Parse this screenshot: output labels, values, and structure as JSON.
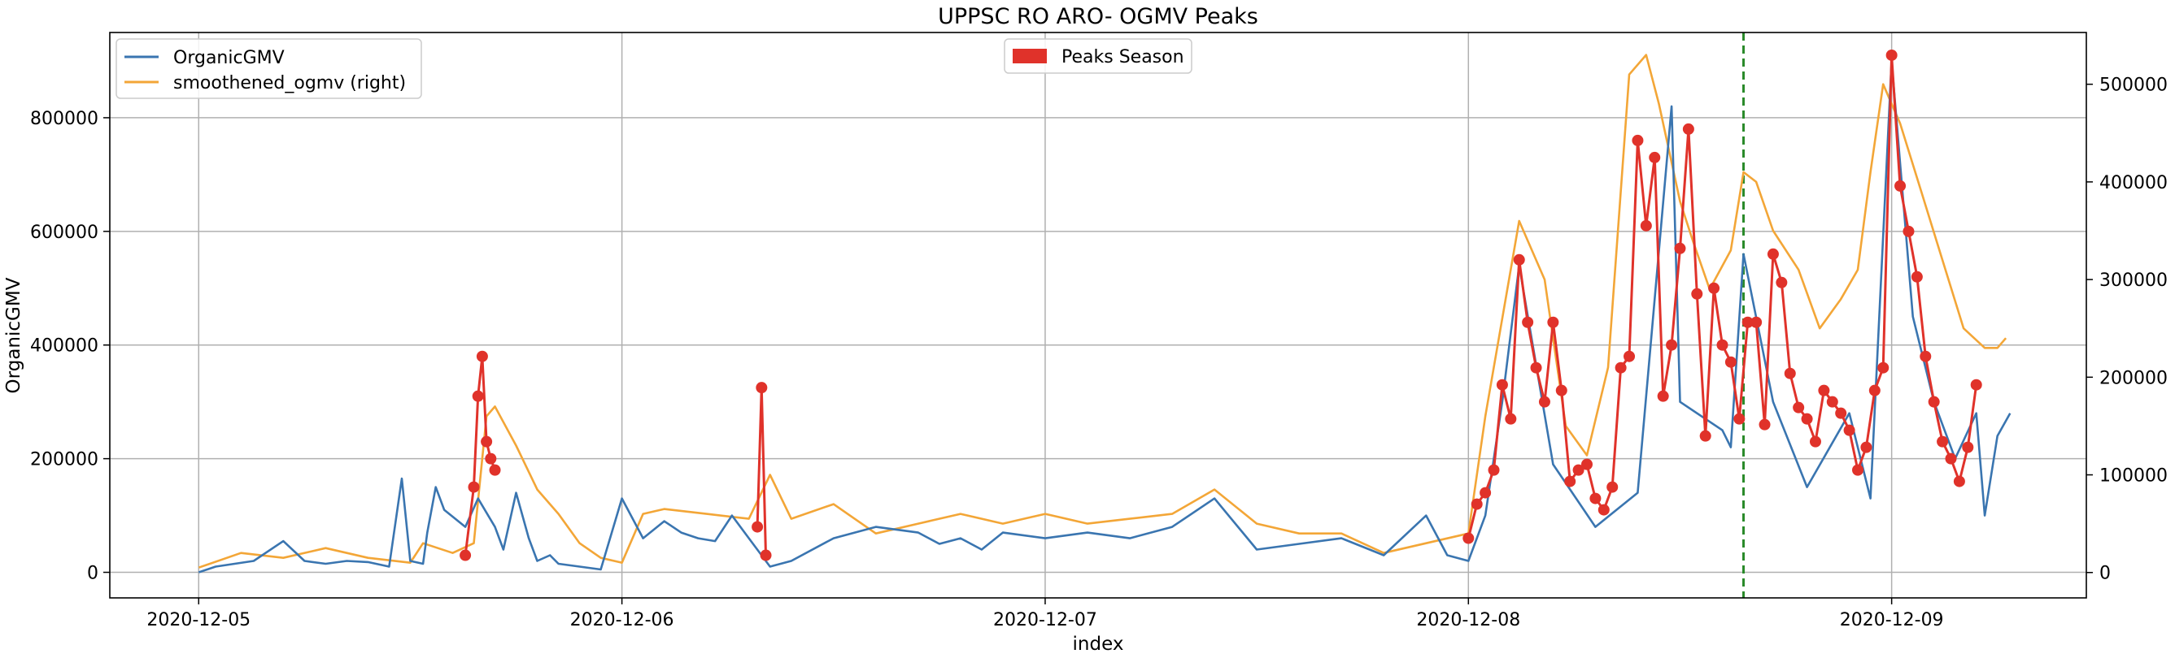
{
  "chart_data": {
    "type": "line",
    "title": "UPPSC RO ARO- OGMV Peaks",
    "xlabel": "index",
    "ylabel": "OrganicGMV",
    "ylabel_right": "",
    "x_ticks": [
      "2020-12-05",
      "2020-12-06",
      "2020-12-07",
      "2020-12-08",
      "2020-12-09"
    ],
    "y_ticks_left": [
      "0",
      "200000",
      "400000",
      "600000",
      "800000"
    ],
    "y_ticks_right": [
      "0",
      "100000",
      "200000",
      "300000",
      "400000",
      "500000"
    ],
    "ylim_left": [
      -45000,
      950000
    ],
    "ylim_right": [
      -26000,
      553000
    ],
    "xlim_days": [
      -0.21,
      4.46
    ],
    "grid": true,
    "legend_left_placement": "top-left",
    "legend_center_placement": "top-center",
    "vline": {
      "x_day": 3.65,
      "color": "#2a8a2a",
      "style": "dashed"
    },
    "colors": {
      "organic": "#3a75b0",
      "smooth": "#f3a637",
      "peaks": "#e0322a",
      "grid": "#b0b0b0"
    },
    "series": [
      {
        "name": "OrganicGMV",
        "axis": "left",
        "x_day": [
          0,
          0.04,
          0.13,
          0.2,
          0.25,
          0.3,
          0.35,
          0.4,
          0.45,
          0.48,
          0.5,
          0.53,
          0.54,
          0.56,
          0.58,
          0.63,
          0.66,
          0.7,
          0.72,
          0.75,
          0.78,
          0.8,
          0.83,
          0.85,
          0.9,
          0.95,
          1.0,
          1.05,
          1.1,
          1.12,
          1.14,
          1.18,
          1.22,
          1.26,
          1.3,
          1.35,
          1.4,
          1.5,
          1.6,
          1.7,
          1.75,
          1.8,
          1.85,
          1.9,
          2.0,
          2.1,
          2.2,
          2.3,
          2.4,
          2.5,
          2.6,
          2.7,
          2.8,
          2.9,
          2.95,
          3.0,
          3.04,
          3.08,
          3.12,
          3.2,
          3.3,
          3.4,
          3.48,
          3.5,
          3.6,
          3.62,
          3.65,
          3.72,
          3.8,
          3.9,
          3.95,
          4.0,
          4.05,
          4.1,
          4.15,
          4.2,
          4.22,
          4.25,
          4.28
        ],
        "values": [
          0,
          10000,
          20000,
          55000,
          20000,
          15000,
          20000,
          18000,
          10000,
          165000,
          20000,
          15000,
          70000,
          150000,
          110000,
          80000,
          130000,
          80000,
          40000,
          140000,
          60000,
          20000,
          30000,
          15000,
          10000,
          5000,
          130000,
          60000,
          90000,
          80000,
          70000,
          60000,
          55000,
          100000,
          60000,
          10000,
          20000,
          60000,
          80000,
          70000,
          50000,
          60000,
          40000,
          70000,
          60000,
          70000,
          60000,
          80000,
          130000,
          40000,
          50000,
          60000,
          30000,
          100000,
          30000,
          20000,
          100000,
          300000,
          540000,
          190000,
          80000,
          140000,
          820000,
          300000,
          250000,
          220000,
          560000,
          300000,
          150000,
          280000,
          130000,
          900000,
          450000,
          300000,
          200000,
          280000,
          100000,
          240000,
          280000
        ]
      },
      {
        "name": "smoothened_ogmv (right)",
        "axis": "right",
        "x_day": [
          0,
          0.1,
          0.2,
          0.3,
          0.4,
          0.5,
          0.53,
          0.6,
          0.65,
          0.68,
          0.7,
          0.75,
          0.8,
          0.85,
          0.9,
          0.95,
          1.0,
          1.05,
          1.1,
          1.2,
          1.3,
          1.35,
          1.4,
          1.5,
          1.6,
          1.7,
          1.8,
          1.9,
          2.0,
          2.1,
          2.2,
          2.3,
          2.4,
          2.5,
          2.6,
          2.7,
          2.8,
          2.9,
          3.0,
          3.04,
          3.08,
          3.12,
          3.18,
          3.23,
          3.28,
          3.33,
          3.38,
          3.42,
          3.45,
          3.5,
          3.53,
          3.57,
          3.62,
          3.65,
          3.68,
          3.72,
          3.78,
          3.83,
          3.88,
          3.92,
          3.95,
          3.98,
          4.02,
          4.07,
          4.12,
          4.17,
          4.22,
          4.25,
          4.27
        ],
        "values": [
          5000,
          20000,
          15000,
          25000,
          15000,
          10000,
          30000,
          20000,
          30000,
          160000,
          170000,
          130000,
          85000,
          60000,
          30000,
          15000,
          10000,
          60000,
          65000,
          60000,
          55000,
          100000,
          55000,
          70000,
          40000,
          50000,
          60000,
          50000,
          60000,
          50000,
          55000,
          60000,
          85000,
          50000,
          40000,
          40000,
          20000,
          30000,
          40000,
          160000,
          260000,
          360000,
          300000,
          150000,
          120000,
          210000,
          510000,
          530000,
          480000,
          380000,
          340000,
          290000,
          330000,
          410000,
          400000,
          350000,
          310000,
          250000,
          280000,
          310000,
          410000,
          500000,
          460000,
          390000,
          320000,
          250000,
          230000,
          230000,
          240000
        ]
      },
      {
        "name": "Peaks Season",
        "axis": "left",
        "marker": true,
        "x_day": [
          0.63,
          0.65,
          0.66,
          0.67,
          0.68,
          0.69,
          0.7,
          1.32,
          1.33,
          1.34,
          3.0,
          3.02,
          3.04,
          3.06,
          3.08,
          3.1,
          3.12,
          3.14,
          3.16,
          3.18,
          3.2,
          3.22,
          3.24,
          3.26,
          3.28,
          3.3,
          3.32,
          3.34,
          3.36,
          3.38,
          3.4,
          3.42,
          3.44,
          3.46,
          3.48,
          3.5,
          3.52,
          3.54,
          3.56,
          3.58,
          3.6,
          3.62,
          3.64,
          3.66,
          3.68,
          3.7,
          3.72,
          3.74,
          3.76,
          3.78,
          3.8,
          3.82,
          3.84,
          3.86,
          3.88,
          3.9,
          3.92,
          3.94,
          3.96,
          3.98,
          4.0,
          4.02,
          4.04,
          4.06,
          4.08,
          4.1,
          4.12,
          4.14,
          4.16,
          4.18,
          4.2
        ],
        "values": [
          30000,
          150000,
          310000,
          380000,
          230000,
          200000,
          180000,
          80000,
          325000,
          30000,
          60000,
          120000,
          140000,
          180000,
          330000,
          270000,
          550000,
          440000,
          360000,
          300000,
          440000,
          320000,
          160000,
          180000,
          190000,
          130000,
          110000,
          150000,
          360000,
          380000,
          760000,
          610000,
          730000,
          310000,
          400000,
          570000,
          780000,
          490000,
          240000,
          500000,
          400000,
          370000,
          270000,
          440000,
          440000,
          260000,
          560000,
          510000,
          350000,
          290000,
          270000,
          230000,
          320000,
          300000,
          280000,
          250000,
          180000,
          220000,
          320000,
          360000,
          910000,
          680000,
          600000,
          520000,
          380000,
          300000,
          230000,
          200000,
          160000,
          220000,
          330000
        ]
      }
    ]
  }
}
